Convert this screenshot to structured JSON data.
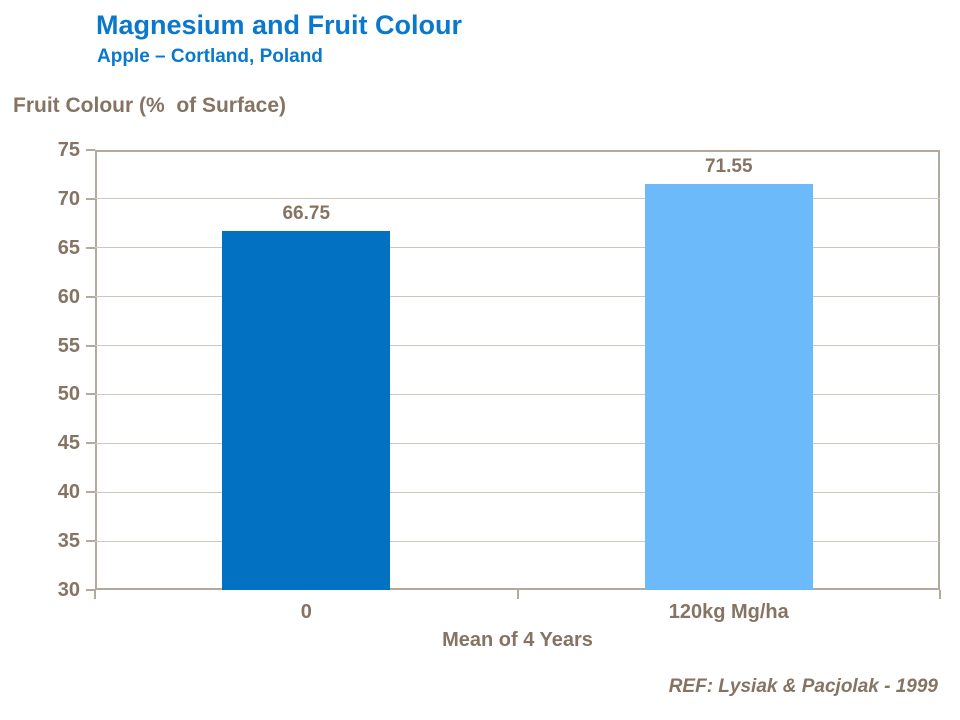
{
  "header": {
    "title": "Magnesium and Fruit Colour",
    "subtitle": "Apple – Cortland, Poland"
  },
  "chart_data": {
    "type": "bar",
    "title": "Magnesium and Fruit Colour",
    "subtitle": "Apple – Cortland, Poland",
    "ylabel": "Fruit Colour (%  of Surface)",
    "xlabel": "Mean of 4 Years",
    "categories": [
      "0",
      "120kg Mg/ha"
    ],
    "values": [
      66.75,
      71.55
    ],
    "value_labels": [
      "66.75",
      "71.55"
    ],
    "bar_colors": [
      "#0271C2",
      "#6DBAFA"
    ],
    "ylim": [
      30,
      75
    ],
    "yticks": [
      30,
      35,
      40,
      45,
      50,
      55,
      60,
      65,
      70,
      75
    ],
    "grid": true,
    "legend_position": "none"
  },
  "footer": {
    "reference": "REF: Lysiak & Pacjolak - 1999"
  },
  "colors": {
    "title_blue": "#0A78CC",
    "text_brown": "#857463",
    "axis_frame": "#B3A99E",
    "gridline": "#CDC7BE",
    "bar_dark_blue": "#0271C2",
    "bar_light_blue": "#6DBAFA",
    "background": "#FFFFFF"
  }
}
